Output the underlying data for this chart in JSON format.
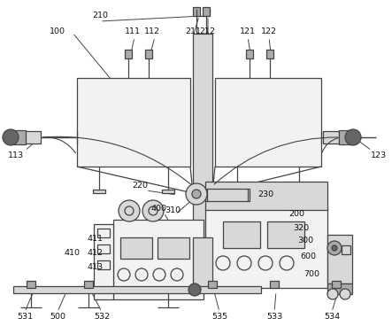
{
  "bg_color": "#ffffff",
  "lc": "#444444",
  "lc2": "#888888",
  "fc_light": "#f2f2f2",
  "fc_med": "#d8d8d8",
  "fc_dark": "#aaaaaa",
  "fc_darker": "#666666",
  "figsize": [
    4.43,
    3.68
  ],
  "dpi": 100
}
